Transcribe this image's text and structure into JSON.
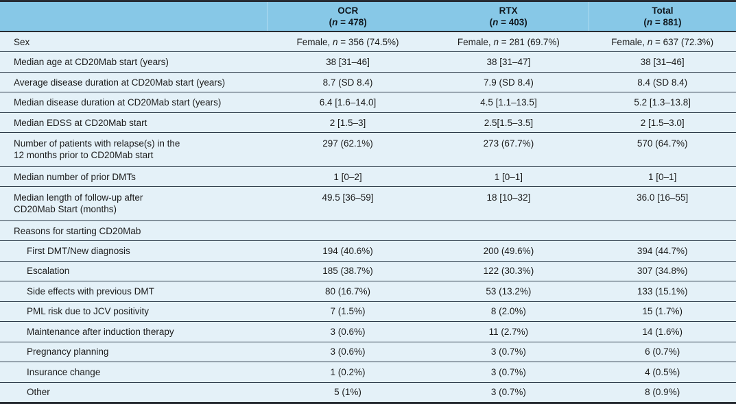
{
  "table": {
    "header": {
      "columns": [
        {
          "name": "OCR",
          "n_line": "(n = 478)"
        },
        {
          "name": "RTX",
          "n_line": "(n = 403)"
        },
        {
          "name": "Total",
          "n_line": "(n = 881)"
        }
      ]
    },
    "rows": [
      {
        "label": "Sex",
        "indent": false,
        "multiline": false,
        "values": [
          "Female, n = 356 (74.5%)",
          "Female, n = 281 (69.7%)",
          "Female, n = 637 (72.3%)"
        ]
      },
      {
        "label": "Median age at CD20Mab start (years)",
        "indent": false,
        "multiline": false,
        "values": [
          "38 [31–46]",
          "38 [31–47]",
          "38 [31–46]"
        ]
      },
      {
        "label": "Average disease duration at CD20Mab start (years)",
        "indent": false,
        "multiline": false,
        "values": [
          "8.7 (SD 8.4)",
          "7.9 (SD 8.4)",
          "8.4 (SD 8.4)"
        ]
      },
      {
        "label": "Median disease duration at CD20Mab start (years)",
        "indent": false,
        "multiline": false,
        "values": [
          "6.4 [1.6–14.0]",
          "4.5 [1.1–13.5]",
          "5.2 [1.3–13.8]"
        ]
      },
      {
        "label": "Median EDSS at CD20Mab start",
        "indent": false,
        "multiline": false,
        "values": [
          "2 [1.5–3]",
          "2.5[1.5–3.5]",
          "2 [1.5–3.0]"
        ]
      },
      {
        "label": "Number of patients with relapse(s) in the\n12 months prior to CD20Mab start",
        "indent": false,
        "multiline": true,
        "values": [
          "297 (62.1%)",
          "273 (67.7%)",
          "570 (64.7%)"
        ]
      },
      {
        "label": "Median number of prior DMTs",
        "indent": false,
        "multiline": false,
        "values": [
          "1 [0–2]",
          "1 [0–1]",
          "1 [0–1]"
        ]
      },
      {
        "label": "Median length of follow-up after\nCD20Mab Start (months)",
        "indent": false,
        "multiline": true,
        "values": [
          "49.5 [36–59]",
          "18 [10–32]",
          "36.0 [16–55]"
        ]
      },
      {
        "label": "Reasons for starting CD20Mab",
        "indent": false,
        "multiline": false,
        "values": [
          "",
          "",
          ""
        ]
      },
      {
        "label": "First DMT/New diagnosis",
        "indent": true,
        "multiline": false,
        "values": [
          "194 (40.6%)",
          "200 (49.6%)",
          "394 (44.7%)"
        ]
      },
      {
        "label": "Escalation",
        "indent": true,
        "multiline": false,
        "values": [
          "185 (38.7%)",
          "122 (30.3%)",
          "307 (34.8%)"
        ]
      },
      {
        "label": "Side effects with previous DMT",
        "indent": true,
        "multiline": false,
        "values": [
          "80 (16.7%)",
          "53 (13.2%)",
          "133 (15.1%)"
        ]
      },
      {
        "label": "PML risk due to JCV positivity",
        "indent": true,
        "multiline": false,
        "values": [
          "7 (1.5%)",
          "8 (2.0%)",
          "15 (1.7%)"
        ]
      },
      {
        "label": "Maintenance after induction therapy",
        "indent": true,
        "multiline": false,
        "values": [
          "3 (0.6%)",
          "11 (2.7%)",
          "14 (1.6%)"
        ]
      },
      {
        "label": "Pregnancy planning",
        "indent": true,
        "multiline": false,
        "values": [
          "3 (0.6%)",
          "3 (0.7%)",
          "6 (0.7%)"
        ]
      },
      {
        "label": "Insurance change",
        "indent": true,
        "multiline": false,
        "values": [
          "1 (0.2%)",
          "3 (0.7%)",
          "4 (0.5%)"
        ]
      },
      {
        "label": "Other",
        "indent": true,
        "multiline": false,
        "values": [
          "5 (1%)",
          "3 (0.7%)",
          "8 (0.9%)"
        ]
      }
    ]
  },
  "colors": {
    "header_bg": "#87c8e7",
    "row_bg": "#e4f1f8",
    "rule": "#2c3b49",
    "frame": "#272c33"
  }
}
